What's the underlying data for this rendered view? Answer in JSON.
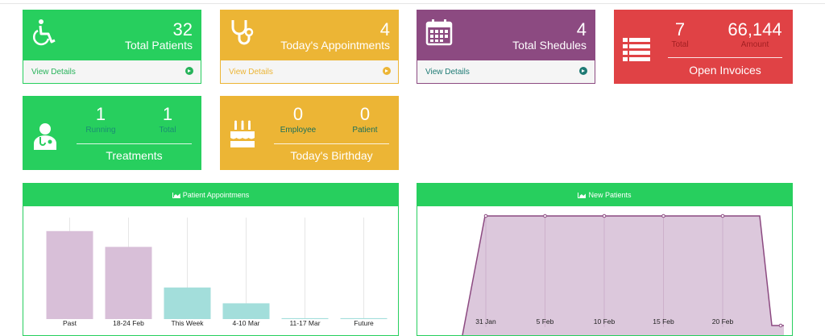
{
  "cards": {
    "total_patients": {
      "value": "32",
      "label": "Total Patients",
      "link": "View Details",
      "icon": "wheelchair-icon"
    },
    "todays_appointments": {
      "value": "4",
      "label": "Today's Appointments",
      "link": "View Details",
      "icon": "stethoscope-icon"
    },
    "total_schedules": {
      "value": "4",
      "label": "Total Shedules",
      "link": "View Details",
      "icon": "calendar-icon"
    },
    "open_invoices": {
      "total_value": "7",
      "total_label": "Total",
      "amount_value": "66,144",
      "amount_label": "Amount",
      "title": "Open Invoices",
      "icon": "list-icon"
    },
    "treatments": {
      "running_value": "1",
      "running_label": "Running",
      "total_value": "1",
      "total_label": "Total",
      "title": "Treatments",
      "icon": "doctor-icon"
    },
    "birthday": {
      "employee_value": "0",
      "employee_label": "Employee",
      "patient_value": "0",
      "patient_label": "Patient",
      "title": "Today's Birthday",
      "icon": "birthday-cake-icon"
    }
  },
  "colors": {
    "green": "#27cf5e",
    "yellow": "#ecb535",
    "purple": "#8c4a81",
    "red": "#e04245",
    "bar_purple": "#d8bfd8",
    "bar_teal": "#a3dedb"
  },
  "panels": {
    "appointments": {
      "title": "Patient Appointmens",
      "icon": "area-chart-icon"
    },
    "new_patients": {
      "title": "New Patients",
      "icon": "area-chart-icon"
    }
  },
  "chart_data": [
    {
      "type": "bar",
      "title": "Patient Appointmens",
      "categories": [
        "Past",
        "18-24 Feb",
        "This Week",
        "4-10 Mar",
        "11-17 Mar",
        "Future"
      ],
      "values": [
        39,
        32,
        14,
        7,
        0.4,
        0.4
      ],
      "colors": [
        "#d8bfd8",
        "#d8bfd8",
        "#a3dedb",
        "#a3dedb",
        "#a3dedb",
        "#a3dedb"
      ],
      "ylim": [
        0,
        45
      ],
      "grid": true
    },
    {
      "type": "area",
      "title": "New Patients",
      "x": [
        "31 Jan",
        "5 Feb",
        "10 Feb",
        "15 Feb",
        "20 Feb"
      ],
      "plateau_value": 1,
      "grid": true
    }
  ]
}
